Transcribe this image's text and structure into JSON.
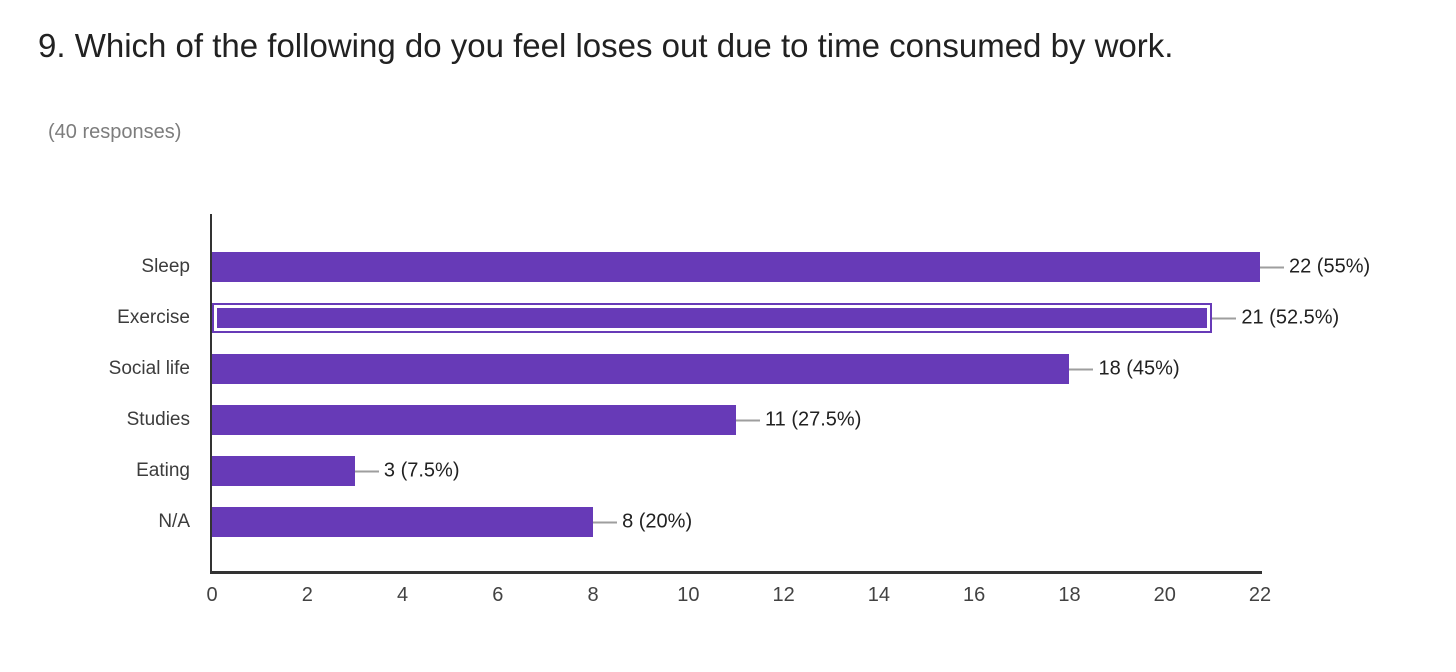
{
  "page": {
    "title": "9. Which of the following do you feel loses out due to time consumed by work.",
    "subtitle": "(40 responses)"
  },
  "chart_data": {
    "type": "bar",
    "orientation": "horizontal",
    "title": "9. Which of the following do you feel loses out due to time consumed by work.",
    "subtitle": "(40 responses)",
    "categories": [
      "Sleep",
      "Exercise",
      "Social life",
      "Studies",
      "Eating",
      "N/A"
    ],
    "values": [
      22,
      21,
      18,
      11,
      3,
      8
    ],
    "value_labels": [
      "22 (55%)",
      "21 (52.5%)",
      "18 (45%)",
      "11 (27.5%)",
      "3 (7.5%)",
      "8 (20%)"
    ],
    "highlighted_category": "Exercise",
    "x_ticks": [
      "0",
      "2",
      "4",
      "6",
      "8",
      "10",
      "12",
      "14",
      "16",
      "18",
      "20",
      "22"
    ],
    "xlim": [
      0,
      22
    ],
    "grid": false,
    "legend": false,
    "colors": {
      "bar": "#673ab7",
      "highlight_inner_border": "#ffffff",
      "axis": "#333333",
      "stem": "#9e9e9e",
      "value_text": "#212121",
      "category_text": "#3c3c3c",
      "subtitle_text": "#7d7d7d"
    }
  }
}
